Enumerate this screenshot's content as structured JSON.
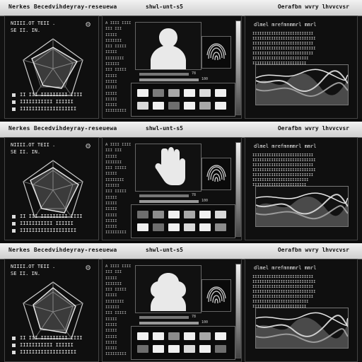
{
  "panels": [
    {
      "top_left": "Nerkes Becedvihdeyray-reseuewa",
      "top_mid": "shwl-unt-s5",
      "top_right": "Oerafbn wvry lhvvcvsr",
      "left": {
        "line1": "NIIII.OT TEII .",
        "line2": "SE II. IN.",
        "stats": [
          "II III IIIIIIIII IIII",
          "IIIIIIIIIII IIIIII",
          "IIIIIIIIIIIIIIIIIII"
        ]
      },
      "mid": {
        "list": [
          "A IIII IIII",
          "III III",
          "IIIII",
          "IIIIIII",
          "III IIIII",
          "IIIII",
          "IIIIIIII",
          "IIIIII",
          "III IIIII",
          "IIIII",
          "IIIII",
          "IIIII",
          "IIIII",
          "IIIII",
          "IIIII",
          "IIIIIIIII"
        ],
        "bar_labels": [
          "78",
          "100"
        ]
      },
      "right": {
        "title": "dlmel mrefmnmmrl mmrl",
        "para": "IIIIIIIIIIIIIIIIIIIIIIIIII\nIIIIIIIIIIIIIIIIIIIIIIIIIII\nIIIIIIIIIIIIIIIIIIIIIIIIII\nIIIIIIIIIIIIIIIIIIIIIIIIIII\nIIIIIIIIIIIIIIIIIIIIIIIIII\nIIIIIIIIIIIIIIIIIIIIIIII\nIIIIIIIIIIIIIIIIIIIIIII"
      }
    },
    {
      "top_left": "Nerkes Becedvihdeyray-reseuewa",
      "top_mid": "shwl-unt-s5",
      "top_right": "Oerafbn wvry lhvvcvsr",
      "left": {
        "line1": "NIIII.OT TEII .",
        "line2": "SE II. IN.",
        "stats": [
          "II III IIIIIIIII IIII",
          "IIIIIIIIIII IIIIII",
          "IIIIIIIIIIIIIIIIIII"
        ]
      },
      "mid": {
        "list": [
          "A IIII IIII",
          "III III",
          "IIIII",
          "IIIIIII",
          "III IIIII",
          "IIIII",
          "IIIIIIII",
          "IIIIII",
          "III IIIII",
          "IIIII",
          "IIIII",
          "IIIII",
          "IIIII",
          "IIIII",
          "IIIII",
          "IIIIIIIII"
        ],
        "bar_labels": [
          "78",
          "100"
        ]
      },
      "right": {
        "title": "dlmel mrefmnmmrl mmrl",
        "para": "IIIIIIIIIIIIIIIIIIIIIIIIII\nIIIIIIIIIIIIIIIIIIIIIIIIIII\nIIIIIIIIIIIIIIIIIIIIIIIIII\nIIIIIIIIIIIIIIIIIIIIIIIIIII\nIIIIIIIIIIIIIIIIIIIIIIIIII\nIIIIIIIIIIIIIIIIIIIIIIII\nIIIIIIIIIIIIIIIIIIIIIII"
      }
    },
    {
      "top_left": "Nerkes Becedvihdeyray-reseuewa",
      "top_mid": "shwl-unt-s5",
      "top_right": "Oerafbn wvry lhvvcvsr",
      "left": {
        "line1": "NIIII.OT TEII .",
        "line2": "SE II. IN.",
        "stats": [
          "II III IIIIIIIII IIII",
          "IIIIIIIIIII IIIIII",
          "IIIIIIIIIIIIIIIIIII"
        ]
      },
      "mid": {
        "list": [
          "A IIII IIII",
          "III III",
          "IIIII",
          "IIIIIII",
          "III IIIII",
          "IIIII",
          "IIIIIIII",
          "IIIIII",
          "III IIIII",
          "IIIII",
          "IIIII",
          "IIIII",
          "IIIII",
          "IIIII",
          "IIIII",
          "IIIIIIIII"
        ],
        "bar_labels": [
          "78",
          "100"
        ]
      },
      "right": {
        "title": "dlmel mrefmnmmrl mmrl",
        "para": "IIIIIIIIIIIIIIIIIIIIIIIIII\nIIIIIIIIIIIIIIIIIIIIIIIIIII\nIIIIIIIIIIIIIIIIIIIIIIIIII\nIIIIIIIIIIIIIIIIIIIIIIIIIII\nIIIIIIIIIIIIIIIIIIIIIIIIII\nIIIIIIIIIIIIIIIIIIIIIIII\nIIIIIIIIIIIIIIIIIIIIIII"
      }
    }
  ],
  "icons": {
    "settings": "⚙"
  },
  "colors": {
    "bg": "#0b0b0b",
    "panel": "#111111",
    "chrome": "#d9d9d9"
  }
}
